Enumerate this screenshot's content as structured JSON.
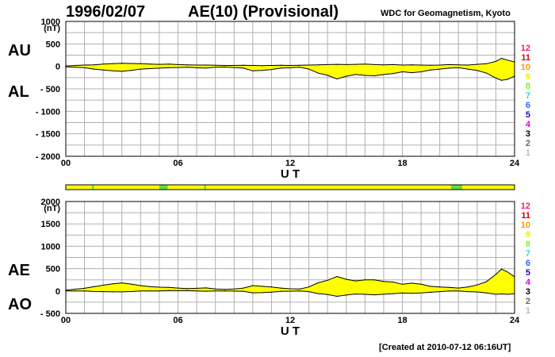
{
  "header": {
    "date": "1996/02/07",
    "title": "AE(10) (Provisional)",
    "source": "WDC for Geomagnetism, Kyoto"
  },
  "footer": {
    "created": "[Created at 2010-07-12 06:16UT]"
  },
  "colors": {
    "fill": "#ffff00",
    "line": "#000000",
    "grid": "#b0b0b0",
    "green": "#66dd33",
    "axis": "#000000"
  },
  "station_legend": [
    {
      "label": "12",
      "color": "#ee2277"
    },
    {
      "label": "11",
      "color": "#dd0000"
    },
    {
      "label": "10",
      "color": "#ff9900"
    },
    {
      "label": "9",
      "color": "#eeee00"
    },
    {
      "label": "8",
      "color": "#88ee22"
    },
    {
      "label": "7",
      "color": "#22dddd"
    },
    {
      "label": "6",
      "color": "#2266ff"
    },
    {
      "label": "5",
      "color": "#3300aa"
    },
    {
      "label": "4",
      "color": "#dd00dd"
    },
    {
      "label": "3",
      "color": "#000000"
    },
    {
      "label": "2",
      "color": "#666666"
    },
    {
      "label": "1",
      "color": "#bbbbbb"
    }
  ],
  "station_count_bar": {
    "base_count": 9,
    "segments": [
      {
        "from": 1.4,
        "to": 1.5,
        "count": 8
      },
      {
        "from": 5.0,
        "to": 5.45,
        "count": 8
      },
      {
        "from": 7.4,
        "to": 7.5,
        "count": 8
      },
      {
        "from": 20.6,
        "to": 21.2,
        "count": 8
      }
    ]
  },
  "chart_data": [
    {
      "type": "area",
      "xlabel": "U T",
      "xticks": [
        "00",
        "06",
        "12",
        "18",
        "24"
      ],
      "xlim": [
        0,
        24
      ],
      "ylim": [
        -2000,
        1000
      ],
      "yticks": [
        "1000",
        "(nT)",
        "500",
        "0",
        "- 500",
        "- 1000",
        "- 1500",
        "- 2000"
      ],
      "side_labels": [
        "AU",
        "AL"
      ],
      "series": [
        {
          "name": "AU",
          "x": [
            0,
            0.5,
            1,
            1.5,
            2,
            2.5,
            3,
            3.5,
            4,
            4.5,
            5,
            5.5,
            6,
            6.5,
            7,
            7.5,
            8,
            8.5,
            9,
            9.5,
            10,
            10.5,
            11,
            11.5,
            12,
            12.5,
            13,
            13.5,
            14,
            14.5,
            15,
            15.5,
            16,
            16.5,
            17,
            17.5,
            18,
            18.5,
            19,
            19.5,
            20,
            20.5,
            21,
            21.5,
            22,
            22.5,
            23,
            23.3,
            23.6,
            24
          ],
          "values": [
            10,
            20,
            30,
            35,
            50,
            60,
            70,
            65,
            60,
            50,
            45,
            50,
            40,
            35,
            30,
            30,
            25,
            20,
            20,
            25,
            20,
            15,
            20,
            25,
            20,
            25,
            30,
            35,
            40,
            45,
            40,
            45,
            50,
            40,
            35,
            40,
            30,
            35,
            30,
            25,
            30,
            40,
            35,
            30,
            45,
            60,
            110,
            180,
            140,
            100
          ]
        },
        {
          "name": "AL",
          "x": [
            0,
            0.5,
            1,
            1.5,
            2,
            2.5,
            3,
            3.5,
            4,
            4.5,
            5,
            5.5,
            6,
            6.5,
            7,
            7.5,
            8,
            8.5,
            9,
            9.5,
            10,
            10.5,
            11,
            11.5,
            12,
            12.5,
            13,
            13.5,
            14,
            14.5,
            15,
            15.5,
            16,
            16.5,
            17,
            17.5,
            18,
            18.5,
            19,
            19.5,
            20,
            20.5,
            21,
            21.5,
            22,
            22.5,
            23,
            23.3,
            23.6,
            24
          ],
          "values": [
            -10,
            -20,
            -30,
            -60,
            -80,
            -100,
            -110,
            -90,
            -60,
            -50,
            -40,
            -30,
            -25,
            -20,
            -30,
            -40,
            -20,
            -15,
            -25,
            -40,
            -100,
            -90,
            -70,
            -40,
            -30,
            -20,
            -60,
            -150,
            -200,
            -280,
            -220,
            -180,
            -200,
            -210,
            -180,
            -160,
            -120,
            -140,
            -120,
            -80,
            -60,
            -40,
            -30,
            -60,
            -90,
            -150,
            -260,
            -310,
            -290,
            -220
          ]
        }
      ]
    },
    {
      "type": "area",
      "xlabel": "U T",
      "xticks": [
        "00",
        "06",
        "12",
        "18",
        "24"
      ],
      "xlim": [
        0,
        24
      ],
      "ylim": [
        -500,
        2000
      ],
      "yticks": [
        "2000",
        "(nT)",
        "1500",
        "1000",
        "500",
        "0",
        "- 500"
      ],
      "side_labels": [
        "AE",
        "AO"
      ],
      "series": [
        {
          "name": "AE",
          "x": [
            0,
            0.5,
            1,
            1.5,
            2,
            2.5,
            3,
            3.5,
            4,
            4.5,
            5,
            5.5,
            6,
            6.5,
            7,
            7.5,
            8,
            8.5,
            9,
            9.5,
            10,
            10.5,
            11,
            11.5,
            12,
            12.5,
            13,
            13.5,
            14,
            14.5,
            15,
            15.5,
            16,
            16.5,
            17,
            17.5,
            18,
            18.5,
            19,
            19.5,
            20,
            20.5,
            21,
            21.5,
            22,
            22.5,
            23,
            23.3,
            23.6,
            24
          ],
          "values": [
            20,
            40,
            60,
            95,
            130,
            160,
            180,
            155,
            120,
            100,
            85,
            80,
            65,
            55,
            60,
            70,
            45,
            35,
            45,
            65,
            120,
            105,
            90,
            65,
            50,
            45,
            90,
            185,
            240,
            325,
            260,
            225,
            250,
            250,
            215,
            200,
            150,
            175,
            150,
            105,
            90,
            80,
            65,
            90,
            135,
            210,
            370,
            490,
            430,
            320
          ]
        },
        {
          "name": "AO",
          "x": [
            0,
            0.5,
            1,
            1.5,
            2,
            2.5,
            3,
            3.5,
            4,
            4.5,
            5,
            5.5,
            6,
            6.5,
            7,
            7.5,
            8,
            8.5,
            9,
            9.5,
            10,
            10.5,
            11,
            11.5,
            12,
            12.5,
            13,
            13.5,
            14,
            14.5,
            15,
            15.5,
            16,
            16.5,
            17,
            17.5,
            18,
            18.5,
            19,
            19.5,
            20,
            20.5,
            21,
            21.5,
            22,
            22.5,
            23,
            23.3,
            23.6,
            24
          ],
          "values": [
            0,
            0,
            0,
            -12,
            -15,
            -20,
            -20,
            -12,
            0,
            0,
            2,
            10,
            8,
            8,
            0,
            -5,
            2,
            2,
            -2,
            -8,
            -40,
            -38,
            -25,
            -8,
            -5,
            2,
            -15,
            -58,
            -80,
            -118,
            -90,
            -68,
            -75,
            -85,
            -72,
            -60,
            -45,
            -52,
            -45,
            -28,
            -15,
            0,
            2,
            -15,
            -22,
            -45,
            -75,
            -65,
            -75,
            -60
          ]
        }
      ]
    }
  ]
}
